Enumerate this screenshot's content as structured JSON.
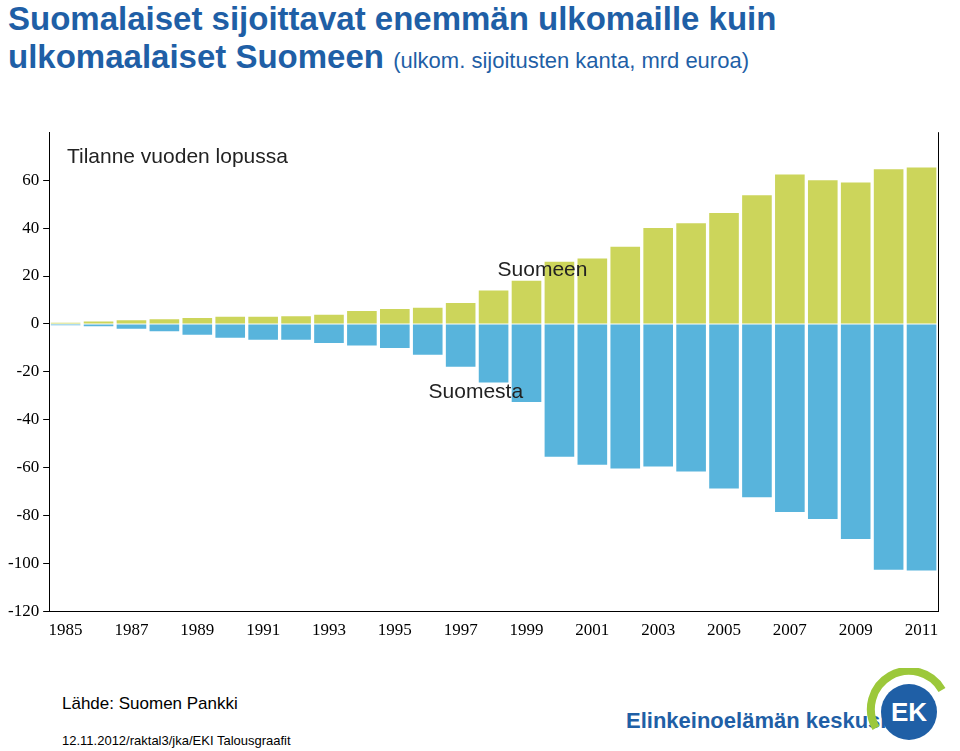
{
  "chart_data": {
    "type": "bar",
    "title": "Suomalaiset sijoittavat enemmän ulkomaille kuin ulkomaalaiset Suomeen",
    "subtitle": "(ulkom. sijoitusten kanta, mrd euroa)",
    "annotations": [
      "Tilanne vuoden lopussa",
      "Suomeen",
      "Suomesta"
    ],
    "source": "Lähde: Suomen Pankki",
    "footer": "12.11.2012/raktal3/jka/EKI Talousgraafit",
    "logo": {
      "text": "Elinkeinoelämän keskusliitto",
      "mark": "EK"
    },
    "categories": [
      "1985",
      null,
      "1987",
      null,
      "1989",
      null,
      "1991",
      null,
      "1993",
      null,
      "1995",
      null,
      "1997",
      null,
      "1999",
      null,
      "2001",
      null,
      "2003",
      null,
      "2005",
      null,
      "2007",
      null,
      "2009",
      null,
      "2011"
    ],
    "series": [
      {
        "name": "Suomeen",
        "color": "#ccd55b",
        "values": [
          0.5,
          1,
          1.5,
          2,
          2.5,
          3,
          3,
          3.2,
          3.8,
          5.4,
          6.2,
          6.8,
          8.7,
          14,
          18,
          26,
          27.3,
          32.2,
          40,
          42,
          46.3,
          53.7,
          62.4,
          60,
          59,
          64.5,
          65.3
        ]
      },
      {
        "name": "Suomesta",
        "color": "#58b4dc",
        "values": [
          -0.5,
          -1,
          -2,
          -3,
          -4.5,
          -5.8,
          -6.6,
          -6.6,
          -7.9,
          -9,
          -10,
          -12.8,
          -17.8,
          -24.4,
          -32.6,
          -55.4,
          -58.7,
          -60.3,
          -59.5,
          -61.6,
          -68.6,
          -72.3,
          -78.5,
          -81.4,
          -89.7,
          -102.5,
          -102.9
        ]
      }
    ],
    "stacked": true,
    "grid": false,
    "ylim": [
      -120,
      80
    ],
    "yticks": [
      -120,
      -100,
      -80,
      -60,
      -40,
      -20,
      0,
      20,
      40,
      60
    ]
  }
}
